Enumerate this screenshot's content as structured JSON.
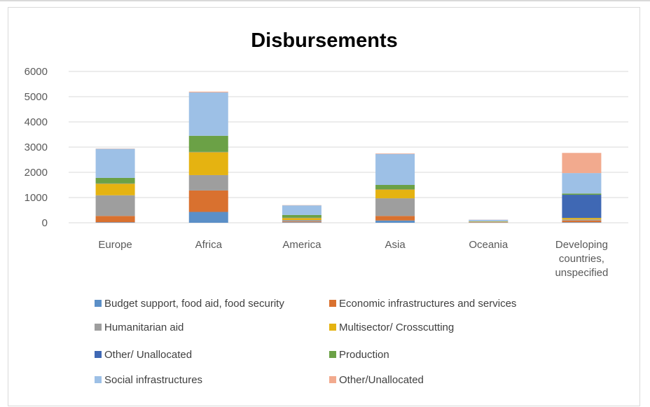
{
  "chart_data": {
    "type": "bar",
    "stacked": true,
    "title": "Disbursements",
    "xlabel": "",
    "ylabel": "",
    "ylim": [
      0,
      6000
    ],
    "yticks": [
      0,
      1000,
      2000,
      3000,
      4000,
      5000,
      6000
    ],
    "grid": "horizontal",
    "legend_position": "bottom",
    "categories": [
      [
        "Europe"
      ],
      [
        "Africa"
      ],
      [
        "America"
      ],
      [
        "Asia"
      ],
      [
        "Oceania"
      ],
      [
        "Developing",
        "countries,",
        "unspecified"
      ]
    ],
    "series": [
      {
        "name": "Budget support, food aid, food security",
        "color": "#5b8fc7",
        "values": [
          20,
          430,
          20,
          90,
          5,
          20
        ]
      },
      {
        "name": "Economic infrastructures and services",
        "color": "#d9712f",
        "values": [
          250,
          850,
          30,
          180,
          10,
          70
        ]
      },
      {
        "name": "Humanitarian aid",
        "color": "#9e9e9e",
        "values": [
          820,
          610,
          60,
          700,
          15,
          40
        ]
      },
      {
        "name": "Multisector/ Crosscutting",
        "color": "#e5b311",
        "values": [
          460,
          910,
          80,
          350,
          15,
          60
        ]
      },
      {
        "name": "Other/ Unallocated",
        "color": "#3f68b4",
        "values": [
          10,
          10,
          10,
          10,
          5,
          920
        ]
      },
      {
        "name": "Production",
        "color": "#6ba146",
        "values": [
          220,
          640,
          110,
          170,
          10,
          50
        ]
      },
      {
        "name": "Social infrastructures",
        "color": "#9dc0e6",
        "values": [
          1150,
          1720,
          380,
          1230,
          60,
          810
        ]
      },
      {
        "name": "Other/Unallocated",
        "color": "#f2aa8e",
        "values": [
          10,
          30,
          10,
          20,
          5,
          800
        ]
      }
    ]
  }
}
